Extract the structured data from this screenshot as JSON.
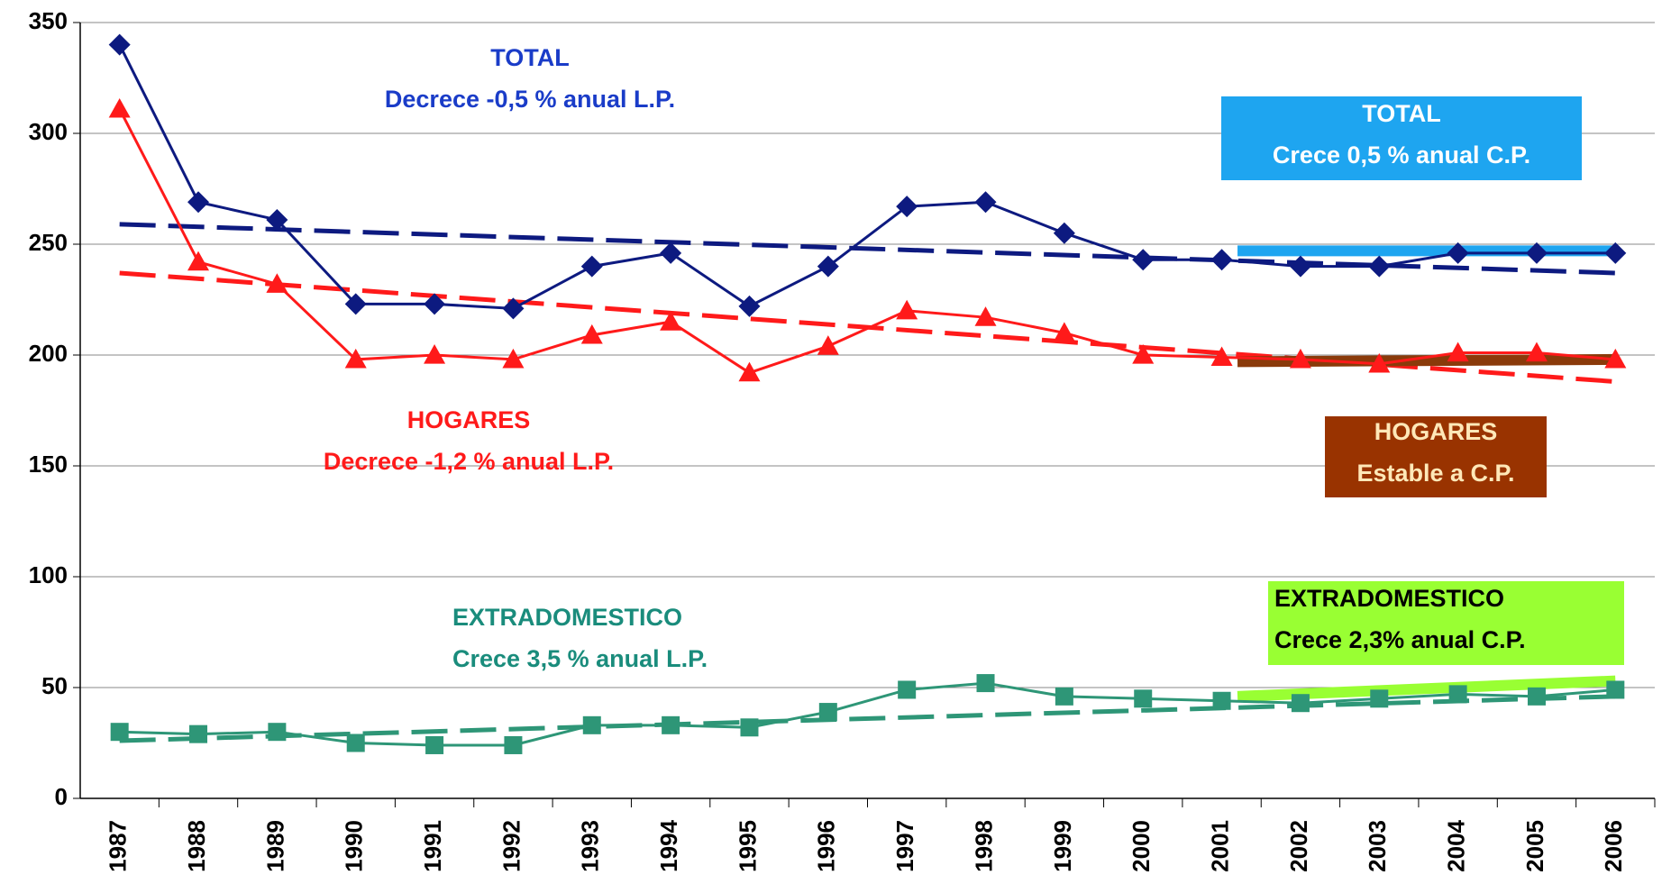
{
  "chart_data": {
    "type": "line",
    "categories": [
      "1987",
      "1988",
      "1989",
      "1990",
      "1991",
      "1992",
      "1993",
      "1994",
      "1995",
      "1996",
      "1997",
      "1998",
      "1999",
      "2000",
      "2001",
      "2002",
      "2003",
      "2004",
      "2005",
      "2006"
    ],
    "series": [
      {
        "name": "TOTAL",
        "color": "#0d1a80",
        "marker": "diamond",
        "values": [
          340,
          269,
          261,
          223,
          223,
          221,
          240,
          246,
          222,
          240,
          267,
          269,
          255,
          243,
          243,
          240,
          240,
          246,
          246,
          246
        ]
      },
      {
        "name": "HOGARES",
        "color": "#ff1a1a",
        "marker": "triangle",
        "values": [
          311,
          242,
          232,
          198,
          200,
          198,
          209,
          215,
          192,
          204,
          220,
          217,
          210,
          200,
          199,
          198,
          196,
          201,
          201,
          198
        ]
      },
      {
        "name": "EXTRADOMESTICO",
        "color": "#2e9677",
        "marker": "square",
        "values": [
          30,
          29,
          30,
          25,
          24,
          24,
          33,
          33,
          32,
          39,
          49,
          52,
          46,
          45,
          44,
          43,
          45,
          47,
          46,
          49
        ]
      }
    ],
    "trends": [
      {
        "color": "#0d1a80",
        "dashed": true,
        "x": [
          "1987",
          "2006"
        ],
        "values": [
          259,
          237
        ]
      },
      {
        "color": "#ff1a1a",
        "dashed": true,
        "x": [
          "1987",
          "2006"
        ],
        "values": [
          237,
          188
        ]
      },
      {
        "color": "#2e9677",
        "dashed": true,
        "x": [
          "1987",
          "2006"
        ],
        "values": [
          26,
          46
        ]
      },
      {
        "color": "#1ea5f0",
        "dashed": false,
        "x": [
          "2001",
          "2006"
        ],
        "values": [
          247,
          247
        ]
      },
      {
        "color": "#8a3a0a",
        "dashed": false,
        "x": [
          "2001",
          "2006"
        ],
        "values": [
          197,
          198
        ]
      },
      {
        "color": "#99ff33",
        "dashed": false,
        "x": [
          "2001",
          "2006"
        ],
        "values": [
          46,
          53
        ]
      }
    ],
    "annotations": [
      {
        "lines": [
          "TOTAL",
          "Decrece -0,5 % anual L.P."
        ],
        "color": "#1a3cc8"
      },
      {
        "lines": [
          "TOTAL",
          "Crece 0,5 % anual C.P."
        ],
        "color": "#ffffff",
        "background": "#1ea5f0"
      },
      {
        "lines": [
          "HOGARES",
          "Decrece -1,2 % anual L.P."
        ],
        "color": "#ff1a1a"
      },
      {
        "lines": [
          "HOGARES",
          "Estable a C.P."
        ],
        "color": "#ffe8b8",
        "background": "#993300"
      },
      {
        "lines": [
          "EXTRADOMESTICO",
          "Crece 3,5 % anual L.P."
        ],
        "color": "#1a8c7c"
      },
      {
        "lines": [
          "EXTRADOMESTICO",
          "Crece 2,3% anual C.P."
        ],
        "color": "#000000",
        "background": "#99ff33"
      }
    ],
    "ylim": [
      0,
      350
    ],
    "yticks": [
      0,
      50,
      100,
      150,
      200,
      250,
      300,
      350
    ],
    "grid": true
  }
}
